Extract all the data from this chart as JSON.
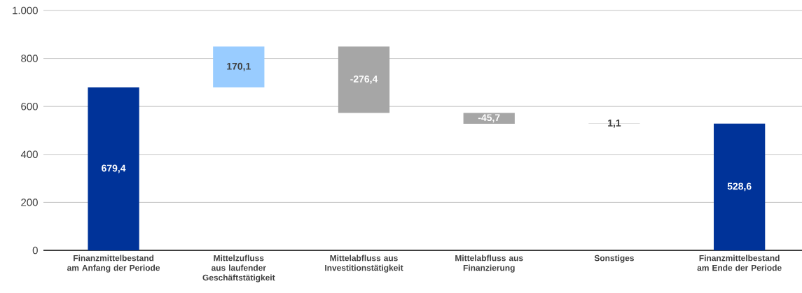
{
  "chart_data": {
    "type": "bar",
    "categories": [
      "Finanzmittelbestand am Anfang der Periode",
      "Mittelzufluss aus laufender Geschäftstätigkeit",
      "Mittelabfluss aus Investitionstätigkeit",
      "Mittelabfluss aus Finanzierung",
      "Sonstiges",
      "Finanzmittelbestand am Ende der Periode"
    ],
    "values": [
      679.4,
      170.1,
      -276.4,
      -45.7,
      1.1,
      528.6
    ],
    "base": [
      0,
      679.4,
      849.5,
      573.1,
      527.4,
      0
    ],
    "colors": [
      "#003399",
      "#99ccff",
      "#a6a6a6",
      "#a6a6a6",
      "#808080",
      "#003399"
    ],
    "value_labels": [
      "679,4",
      "170,1",
      "-276,4",
      "-45,7",
      "1,1",
      "528,6"
    ],
    "ylim": [
      0,
      1000
    ],
    "yticks": [
      0,
      200,
      400,
      600,
      800,
      {
        "value": 1000,
        "label": "1.000"
      }
    ],
    "grid": "y"
  }
}
